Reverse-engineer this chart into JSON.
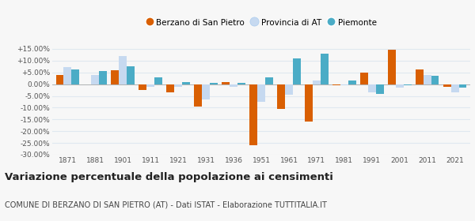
{
  "title": "Variazione percentuale della popolazione ai censimenti",
  "subtitle": "COMUNE DI BERZANO DI SAN PIETRO (AT) - Dati ISTAT - Elaborazione TUTTITALIA.IT",
  "years": [
    1871,
    1881,
    1901,
    1911,
    1921,
    1931,
    1936,
    1951,
    1961,
    1971,
    1981,
    1991,
    2001,
    2011,
    2021
  ],
  "berzano": [
    3.8,
    0.0,
    6.0,
    -2.5,
    -3.5,
    -9.5,
    0.8,
    -26.0,
    -10.5,
    -16.0,
    -0.3,
    4.8,
    14.5,
    6.2,
    -1.2
  ],
  "provincia_at": [
    7.2,
    4.0,
    11.8,
    -1.0,
    -1.2,
    -6.5,
    -1.0,
    -7.5,
    -4.5,
    1.5,
    -0.3,
    -3.5,
    -1.5,
    4.0,
    -3.5
  ],
  "piemonte": [
    6.2,
    5.5,
    7.5,
    3.0,
    1.0,
    0.5,
    0.5,
    3.0,
    11.0,
    13.0,
    1.5,
    -4.0,
    -0.5,
    3.5,
    -1.5
  ],
  "color_berzano": "#d95f02",
  "color_provincia": "#c6d9f0",
  "color_piemonte": "#4bacc6",
  "ylim_min": -30,
  "ylim_max": 17,
  "yticks": [
    -30,
    -25,
    -20,
    -15,
    -10,
    -5,
    0,
    5,
    10,
    15
  ],
  "bg_color": "#f7f7f7",
  "grid_color": "#e0e8f0",
  "legend_labels": [
    "Berzano di San Pietro",
    "Provincia di AT",
    "Piemonte"
  ],
  "title_fontsize": 9.5,
  "subtitle_fontsize": 7.0,
  "tick_fontsize": 6.5
}
